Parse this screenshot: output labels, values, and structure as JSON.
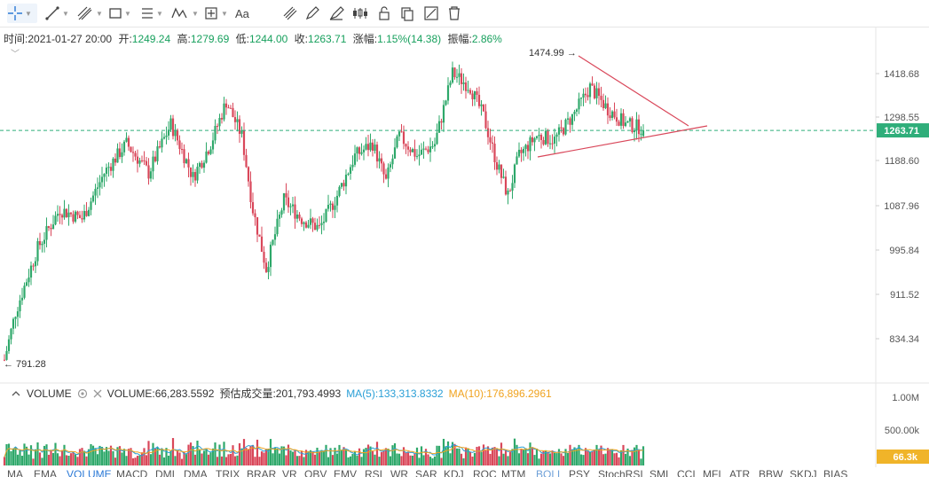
{
  "toolbar": {
    "tools": [
      "crosshair-tool",
      "line-tool",
      "channel-tool",
      "rectangle-tool",
      "fib-tool",
      "wave-tool",
      "measure-tool",
      "text-tool",
      "magnet-tool",
      "pencil-tool",
      "brush-tool",
      "price-range-tool",
      "lock-tool",
      "copy-tool",
      "hide-tool",
      "trash-tool"
    ],
    "text_tool_label": "Aa"
  },
  "info": {
    "time_label": "时间:",
    "time_value": "2021-01-27 20:00",
    "open_label": "开:",
    "open_value": "1249.24",
    "high_label": "高:",
    "high_value": "1279.69",
    "low_label": "低:",
    "low_value": "1244.00",
    "close_label": "收:",
    "close_value": "1263.71",
    "change_label": "涨幅:",
    "change_value": "1.15%(14.38)",
    "amp_label": "振幅:",
    "amp_value": "2.86%"
  },
  "price_axis": {
    "ticks": [
      "1418.68",
      "1298.55",
      "1188.60",
      "1087.96",
      "995.84",
      "911.52",
      "834.34"
    ],
    "current": "1263.71"
  },
  "markers": {
    "high_label": "1474.99",
    "low_label": "791.28"
  },
  "volume": {
    "title": "VOLUME",
    "value_text": "VOLUME:66,283.5592",
    "est_text": "预估成交量:201,793.4993",
    "ma5_text": "MA(5):133,313.8332",
    "ma10_text": "MA(10):176,896.2961",
    "axis": [
      "1.00M",
      "500.00k"
    ],
    "current": "66.3k"
  },
  "tabs": [
    "MA",
    "EMA",
    "VOLUME",
    "MACD",
    "DMI",
    "DMA",
    "TRIX",
    "BRAR",
    "VR",
    "OBV",
    "EMV",
    "RSI",
    "WR",
    "SAR",
    "KDJ",
    "ROC",
    "MTM",
    "BOLL",
    "PSY",
    "StochRSI",
    "SMI",
    "CCI",
    "MFI",
    "ATR",
    "BBW",
    "SKDJ",
    "BIAS"
  ],
  "active_tab": "VOLUME",
  "colors": {
    "up": "#2ea86a",
    "down": "#d9475a",
    "accent": "#2b79d6",
    "ma5": "#2a9fd6",
    "ma10": "#f0a31f",
    "current_tag": "#2fae7a",
    "trendline": "#d9475a"
  },
  "chart_data": {
    "type": "candlestick",
    "y_ticks": [
      834.34,
      911.52,
      995.84,
      1087.96,
      1188.6,
      1298.55,
      1418.68
    ],
    "current_price": 1263.71,
    "high_marker": 1474.99,
    "low_marker": 791.28,
    "last_candle": {
      "open": 1249.24,
      "high": 1279.69,
      "low": 1244.0,
      "close": 1263.71
    },
    "volume_axis": [
      "1.00M",
      "500.00k"
    ],
    "volume_current": "66.3k"
  }
}
